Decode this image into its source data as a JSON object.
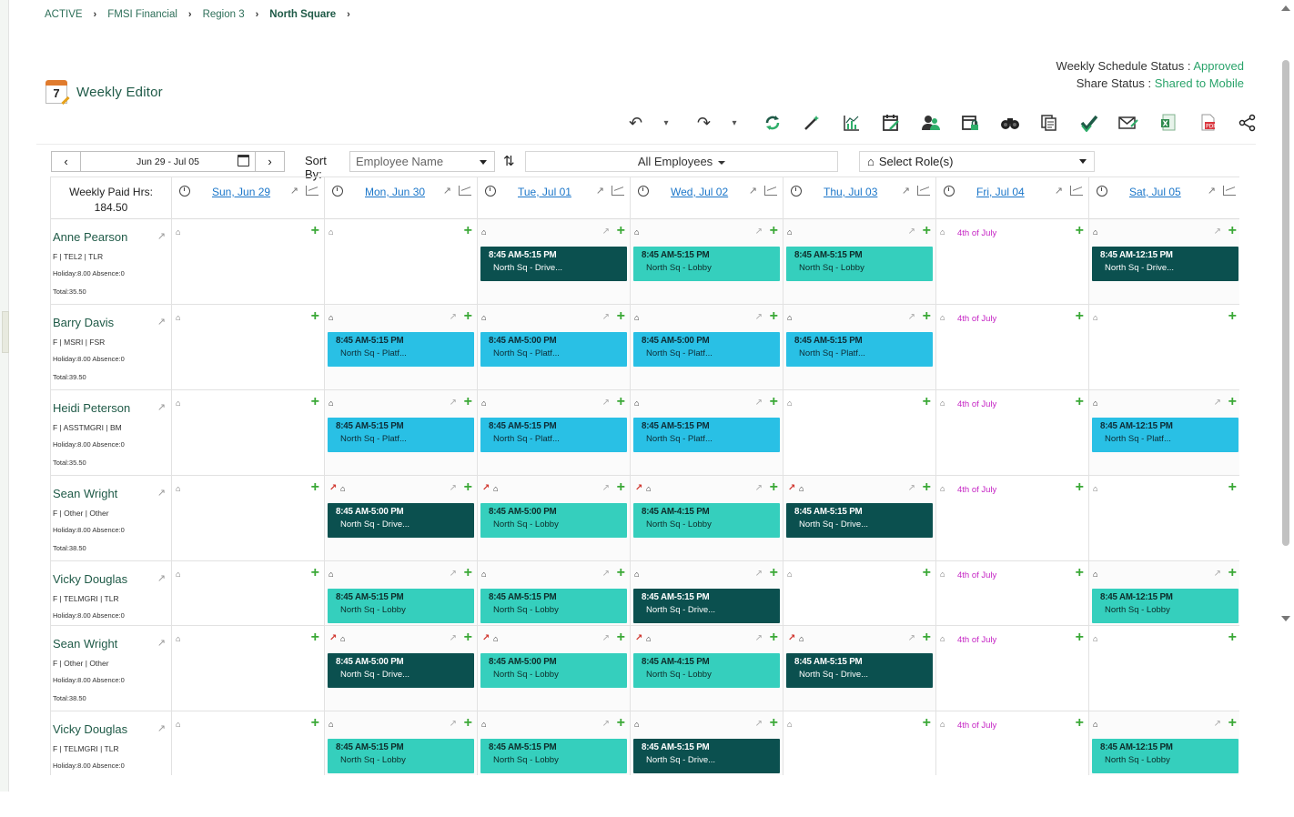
{
  "breadcrumb": [
    "ACTIVE",
    "FMSI Financial",
    "Region 3",
    "North Square"
  ],
  "status": {
    "weekly_label": "Weekly Schedule Status : ",
    "weekly_value": "Approved",
    "share_label": "Share Status : ",
    "share_value": "Shared to Mobile"
  },
  "page": {
    "title": "Weekly Editor",
    "icon_digit": "7"
  },
  "toolbar": [
    "undo-icon",
    "undo-dropdown-icon",
    "redo-icon",
    "redo-dropdown-icon",
    "refresh-schedule-icon",
    "magic-wand-icon",
    "chart-icon",
    "calendar-edit-icon",
    "employees-icon",
    "calendar-lock-icon",
    "binoculars-icon",
    "copy-icon",
    "approve-check-icon",
    "email-icon",
    "excel-export-icon",
    "pdf-export-icon",
    "share-icon"
  ],
  "controls": {
    "date_range": "Jun 29 - Jul 05",
    "sort_label": "Sort By:",
    "sort_value": "Employee Name",
    "employee_filter": "All Employees",
    "role_placeholder": "Select Role(s)"
  },
  "header": {
    "paid_label": "Weekly Paid Hrs:",
    "paid_value": "184.50",
    "days": [
      "Sun, Jun 29",
      "Mon, Jun 30",
      "Tue, Jul 01",
      "Wed, Jul 02",
      "Thu, Jul 03",
      "Fri, Jul 04",
      "Sat, Jul 05"
    ]
  },
  "holiday_label": "4th of July",
  "colors": {
    "drive": "#0b504f",
    "lobby": "#35cfbd",
    "platf": "#29c0e5",
    "holiday": "#c524c4",
    "add": "#3aa836",
    "link": "#1b76c9"
  },
  "employees": [
    {
      "name": "Anne Pearson",
      "info": "F | TEL2 | TLR",
      "hours": "Holiday:8.00  Absence:0",
      "total": "Total:35.50",
      "days": [
        null,
        null,
        {
          "time": "8:45 AM-5:15 PM",
          "loc": "North Sq - Drive...",
          "kind": "drive"
        },
        {
          "time": "8:45 AM-5:15 PM",
          "loc": "North Sq - Lobby",
          "kind": "lobby"
        },
        {
          "time": "8:45 AM-5:15 PM",
          "loc": "North Sq - Lobby",
          "kind": "lobby"
        },
        "holiday",
        {
          "time": "8:45 AM-12:15 PM",
          "loc": "North Sq - Drive...",
          "kind": "drive"
        }
      ]
    },
    {
      "name": "Barry Davis",
      "info": "F | MSRI | FSR",
      "hours": "Holiday:8.00  Absence:0",
      "total": "Total:39.50",
      "days": [
        null,
        {
          "time": "8:45 AM-5:15 PM",
          "loc": "North Sq - Platf...",
          "kind": "platf"
        },
        {
          "time": "8:45 AM-5:00 PM",
          "loc": "North Sq - Platf...",
          "kind": "platf"
        },
        {
          "time": "8:45 AM-5:00 PM",
          "loc": "North Sq - Platf...",
          "kind": "platf"
        },
        {
          "time": "8:45 AM-5:15 PM",
          "loc": "North Sq - Platf...",
          "kind": "platf"
        },
        "holiday",
        null
      ]
    },
    {
      "name": "Heidi Peterson",
      "info": "F | ASSTMGRI | BM",
      "hours": "Holiday:8.00  Absence:0",
      "total": "Total:35.50",
      "days": [
        null,
        {
          "time": "8:45 AM-5:15 PM",
          "loc": "North Sq - Platf...",
          "kind": "platf"
        },
        {
          "time": "8:45 AM-5:15 PM",
          "loc": "North Sq - Platf...",
          "kind": "platf"
        },
        {
          "time": "8:45 AM-5:15 PM",
          "loc": "North Sq - Platf...",
          "kind": "platf"
        },
        null,
        "holiday",
        {
          "time": "8:45 AM-12:15 PM",
          "loc": "North Sq - Platf...",
          "kind": "platf"
        }
      ]
    },
    {
      "name": "Sean Wright",
      "info": "F | Other | Other",
      "hours": "Holiday:8.00  Absence:0",
      "total": "Total:38.50",
      "edited": true,
      "days": [
        null,
        {
          "time": "8:45 AM-5:00 PM",
          "loc": "North Sq - Drive...",
          "kind": "drive"
        },
        {
          "time": "8:45 AM-5:00 PM",
          "loc": "North Sq - Lobby",
          "kind": "lobby"
        },
        {
          "time": "8:45 AM-4:15 PM",
          "loc": "North Sq - Lobby",
          "kind": "lobby"
        },
        {
          "time": "8:45 AM-5:15 PM",
          "loc": "North Sq - Drive...",
          "kind": "drive"
        },
        "holiday",
        null
      ]
    },
    {
      "name": "Vicky Douglas",
      "info": "F | TELMGRI | TLR",
      "hours": "Holiday:8.00  Absence:0",
      "total": "",
      "days": [
        null,
        {
          "time": "8:45 AM-5:15 PM",
          "loc": "North Sq - Lobby",
          "kind": "lobby"
        },
        {
          "time": "8:45 AM-5:15 PM",
          "loc": "North Sq - Lobby",
          "kind": "lobby"
        },
        {
          "time": "8:45 AM-5:15 PM",
          "loc": "North Sq - Drive...",
          "kind": "drive"
        },
        null,
        "holiday",
        {
          "time": "8:45 AM-12:15 PM",
          "loc": "North Sq - Lobby",
          "kind": "lobby"
        }
      ]
    },
    {
      "name": "Sean Wright",
      "info": "F | Other | Other",
      "hours": "Holiday:8.00  Absence:0",
      "total": "Total:38.50",
      "edited": true,
      "days": [
        null,
        {
          "time": "8:45 AM-5:00 PM",
          "loc": "North Sq - Drive...",
          "kind": "drive"
        },
        {
          "time": "8:45 AM-5:00 PM",
          "loc": "North Sq - Lobby",
          "kind": "lobby"
        },
        {
          "time": "8:45 AM-4:15 PM",
          "loc": "North Sq - Lobby",
          "kind": "lobby"
        },
        {
          "time": "8:45 AM-5:15 PM",
          "loc": "North Sq - Drive...",
          "kind": "drive"
        },
        "holiday",
        null
      ]
    },
    {
      "name": "Vicky Douglas",
      "info": "F | TELMGRI | TLR",
      "hours": "Holiday:8.00  Absence:0",
      "total": "",
      "days": [
        null,
        {
          "time": "8:45 AM-5:15 PM",
          "loc": "North Sq - Lobby",
          "kind": "lobby"
        },
        {
          "time": "8:45 AM-5:15 PM",
          "loc": "North Sq - Lobby",
          "kind": "lobby"
        },
        {
          "time": "8:45 AM-5:15 PM",
          "loc": "North Sq - Drive...",
          "kind": "drive"
        },
        null,
        "holiday",
        {
          "time": "8:45 AM-12:15 PM",
          "loc": "North Sq - Lobby",
          "kind": "lobby"
        }
      ]
    }
  ]
}
